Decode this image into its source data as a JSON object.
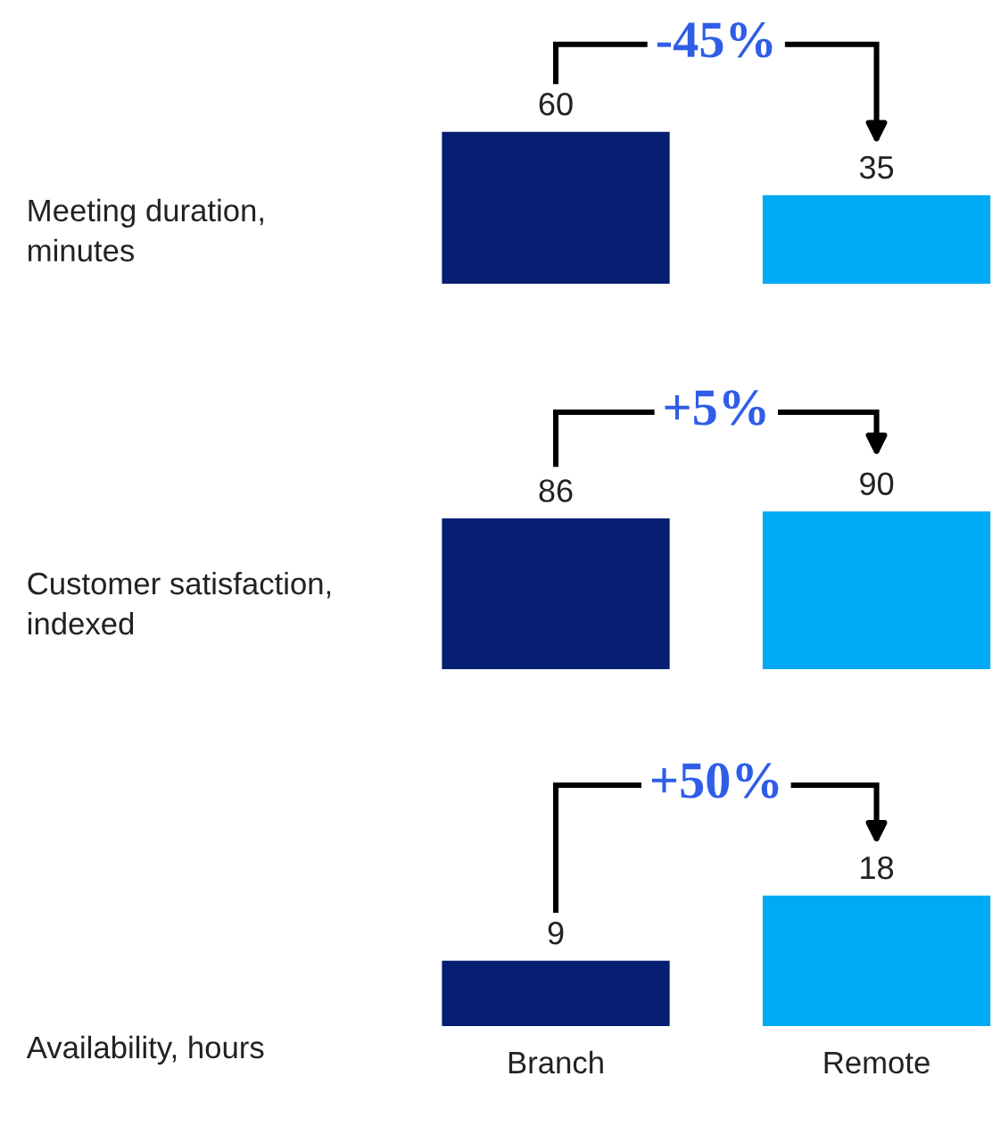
{
  "chart_data": [
    {
      "type": "bar",
      "ylabel": "Meeting duration,\nminutes",
      "categories": [
        null,
        null
      ],
      "values": [
        60,
        35
      ],
      "colors": [
        "#071f72",
        "#00a9f4"
      ],
      "data_labels": true,
      "annotations": [
        "-45%"
      ],
      "tick_labels": false
    },
    {
      "type": "bar",
      "ylabel": "Customer satisfaction,\nindexed",
      "categories": [
        null,
        null
      ],
      "values": [
        86,
        90
      ],
      "colors": [
        "#071f72",
        "#00a9f4"
      ],
      "data_labels": true,
      "annotations": [
        "+5%"
      ],
      "tick_labels": false
    },
    {
      "type": "bar",
      "ylabel": "Availability, hours",
      "categories": [
        "Branch",
        "Remote"
      ],
      "values": [
        9,
        18
      ],
      "colors": [
        "#071f72",
        "#00a9f4"
      ],
      "data_labels": true,
      "annotations": [
        "+50%"
      ],
      "tick_labels": "x"
    }
  ]
}
